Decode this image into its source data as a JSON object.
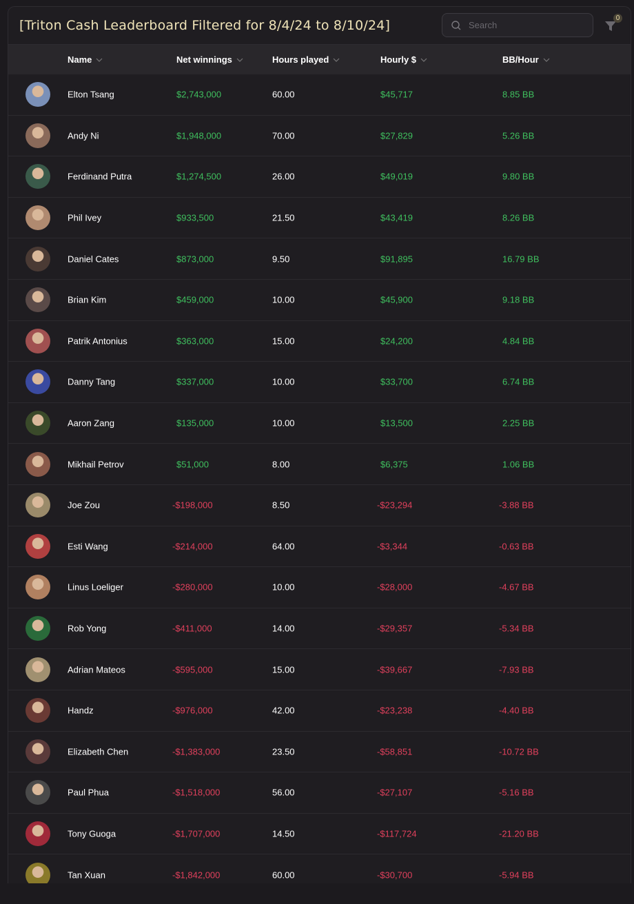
{
  "header": {
    "title": "[Triton Cash Leaderboard Filtered for 8/4/24 to 8/10/24]",
    "search_placeholder": "Search",
    "filter_count": "0"
  },
  "columns": [
    "Name",
    "Net winnings",
    "Hours played",
    "Hourly $",
    "BB/Hour"
  ],
  "colors": {
    "positive": "#3fbf5e",
    "negative": "#e0405c",
    "title": "#efe3b8"
  },
  "rows": [
    {
      "name": "Elton Tsang",
      "net": "$2,743,000",
      "hours": "60.00",
      "hourly": "$45,717",
      "bb": "8.85 BB",
      "sign": "pos",
      "avatar": "#7a90b8"
    },
    {
      "name": "Andy Ni",
      "net": "$1,948,000",
      "hours": "70.00",
      "hourly": "$27,829",
      "bb": "5.26 BB",
      "sign": "pos",
      "avatar": "#8a6a5a"
    },
    {
      "name": "Ferdinand Putra",
      "net": "$1,274,500",
      "hours": "26.00",
      "hourly": "$49,019",
      "bb": "9.80 BB",
      "sign": "pos",
      "avatar": "#3a5a4a"
    },
    {
      "name": "Phil Ivey",
      "net": "$933,500",
      "hours": "21.50",
      "hourly": "$43,419",
      "bb": "8.26 BB",
      "sign": "pos",
      "avatar": "#b08a70"
    },
    {
      "name": "Daniel Cates",
      "net": "$873,000",
      "hours": "9.50",
      "hourly": "$91,895",
      "bb": "16.79 BB",
      "sign": "pos",
      "avatar": "#4a3a34"
    },
    {
      "name": "Brian Kim",
      "net": "$459,000",
      "hours": "10.00",
      "hourly": "$45,900",
      "bb": "9.18 BB",
      "sign": "pos",
      "avatar": "#5a4a48"
    },
    {
      "name": "Patrik Antonius",
      "net": "$363,000",
      "hours": "15.00",
      "hourly": "$24,200",
      "bb": "4.84 BB",
      "sign": "pos",
      "avatar": "#a05050"
    },
    {
      "name": "Danny Tang",
      "net": "$337,000",
      "hours": "10.00",
      "hourly": "$33,700",
      "bb": "6.74 BB",
      "sign": "pos",
      "avatar": "#3a4aa0"
    },
    {
      "name": "Aaron Zang",
      "net": "$135,000",
      "hours": "10.00",
      "hourly": "$13,500",
      "bb": "2.25 BB",
      "sign": "pos",
      "avatar": "#3a4a2a"
    },
    {
      "name": "Mikhail Petrov",
      "net": "$51,000",
      "hours": "8.00",
      "hourly": "$6,375",
      "bb": "1.06 BB",
      "sign": "pos",
      "avatar": "#8a5a4a"
    },
    {
      "name": "Joe Zou",
      "net": "-$198,000",
      "hours": "8.50",
      "hourly": "-$23,294",
      "bb": "-3.88 BB",
      "sign": "neg",
      "avatar": "#9a8a6a"
    },
    {
      "name": "Esti Wang",
      "net": "-$214,000",
      "hours": "64.00",
      "hourly": "-$3,344",
      "bb": "-0.63 BB",
      "sign": "neg",
      "avatar": "#b04040"
    },
    {
      "name": "Linus Loeliger",
      "net": "-$280,000",
      "hours": "10.00",
      "hourly": "-$28,000",
      "bb": "-4.67 BB",
      "sign": "neg",
      "avatar": "#b08060"
    },
    {
      "name": "Rob Yong",
      "net": "-$411,000",
      "hours": "14.00",
      "hourly": "-$29,357",
      "bb": "-5.34 BB",
      "sign": "neg",
      "avatar": "#2a6a3a"
    },
    {
      "name": "Adrian Mateos",
      "net": "-$595,000",
      "hours": "15.00",
      "hourly": "-$39,667",
      "bb": "-7.93 BB",
      "sign": "neg",
      "avatar": "#a09070"
    },
    {
      "name": "Handz",
      "net": "-$976,000",
      "hours": "42.00",
      "hourly": "-$23,238",
      "bb": "-4.40 BB",
      "sign": "neg",
      "avatar": "#6a3a34"
    },
    {
      "name": "Elizabeth Chen",
      "net": "-$1,383,000",
      "hours": "23.50",
      "hourly": "-$58,851",
      "bb": "-10.72 BB",
      "sign": "neg",
      "avatar": "#5a3a3a"
    },
    {
      "name": "Paul Phua",
      "net": "-$1,518,000",
      "hours": "56.00",
      "hourly": "-$27,107",
      "bb": "-5.16 BB",
      "sign": "neg",
      "avatar": "#4a4a4a"
    },
    {
      "name": "Tony Guoga",
      "net": "-$1,707,000",
      "hours": "14.50",
      "hourly": "-$117,724",
      "bb": "-21.20 BB",
      "sign": "neg",
      "avatar": "#a02a3a"
    },
    {
      "name": "Tan Xuan",
      "net": "-$1,842,000",
      "hours": "60.00",
      "hourly": "-$30,700",
      "bb": "-5.94 BB",
      "sign": "neg",
      "avatar": "#8a7a2a"
    }
  ]
}
